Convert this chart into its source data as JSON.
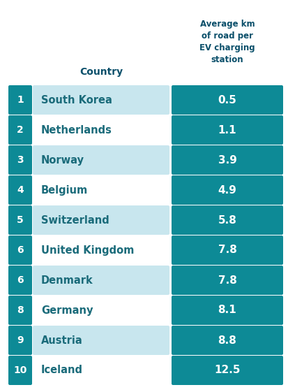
{
  "title_col1": "Country",
  "title_col2": "Average km\nof road per\nEV charging\nstation",
  "rows": [
    {
      "rank": "1",
      "country": "South Korea",
      "value": "0.5",
      "light": true
    },
    {
      "rank": "2",
      "country": "Netherlands",
      "value": "1.1",
      "light": false
    },
    {
      "rank": "3",
      "country": "Norway",
      "value": "3.9",
      "light": true
    },
    {
      "rank": "4",
      "country": "Belgium",
      "value": "4.9",
      "light": false
    },
    {
      "rank": "5",
      "country": "Switzerland",
      "value": "5.8",
      "light": true
    },
    {
      "rank": "6",
      "country": "United Kingdom",
      "value": "7.8",
      "light": false
    },
    {
      "rank": "6",
      "country": "Denmark",
      "value": "7.8",
      "light": true
    },
    {
      "rank": "8",
      "country": "Germany",
      "value": "8.1",
      "light": false
    },
    {
      "rank": "9",
      "country": "Austria",
      "value": "8.8",
      "light": true
    },
    {
      "rank": "10",
      "country": "Iceland",
      "value": "12.5",
      "light": false
    }
  ],
  "teal": "#0D8A96",
  "light_blue": "#C8E6EE",
  "white": "#FFFFFF",
  "country_text": "#1A6B7A",
  "header_text": "#0A4F6A",
  "rank_text": "#FFFFFF",
  "value_text": "#FFFFFF",
  "bg_color": "#FFFFFF",
  "fig_w": 4.14,
  "fig_h": 5.61,
  "dpi": 100
}
